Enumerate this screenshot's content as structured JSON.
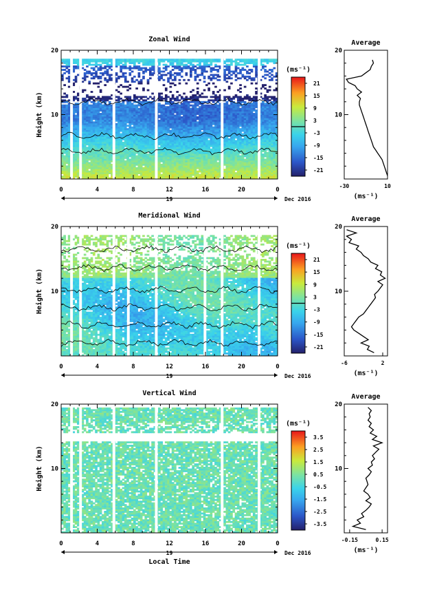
{
  "chart_data": [
    {
      "type": "heatmap",
      "title": "Zonal Wind",
      "ylabel": "Height (km)",
      "ylim": [
        0,
        20
      ],
      "yticks": [
        {
          "value": 10,
          "label": "10"
        },
        {
          "value": 20,
          "label": "20"
        }
      ],
      "xlim": [
        0,
        24
      ],
      "xticks": [
        "0",
        "4",
        "8",
        "12",
        "16",
        "20",
        "0"
      ],
      "day_label": "19",
      "date_label": "Dec 2016",
      "colorbar": {
        "unit": "(ms⁻¹)",
        "range": [
          -24,
          24
        ],
        "tick_values": [
          21,
          15,
          9,
          3,
          -3,
          -9,
          -15,
          -21
        ],
        "tick_labels": [
          "21",
          "15",
          "9",
          "3",
          "-3",
          "-9",
          "-15",
          "-21"
        ],
        "marker": 0
      },
      "data_gaps_local_time": [
        1.0,
        2.0,
        5.7,
        10.4,
        17.7,
        21.8
      ],
      "contour_levels": [
        0
      ],
      "profile": {
        "title": "Average",
        "xlabel": "(ms⁻¹)",
        "xlim": [
          -30,
          10
        ],
        "xticks": [
          {
            "value": -30,
            "label": "-30"
          },
          {
            "value": 10,
            "label": "10"
          }
        ],
        "heights": [
          0.5,
          1,
          1.5,
          2,
          2.5,
          3,
          3.5,
          4,
          4.5,
          5,
          5.5,
          6,
          6.5,
          7,
          7.5,
          8,
          8.5,
          9,
          9.5,
          10,
          10.5,
          11,
          11.5,
          12,
          12.5,
          13,
          13.5,
          14,
          14.5,
          15,
          15.5,
          16,
          16.5,
          17,
          17.5,
          18,
          18.5
        ],
        "values": [
          10,
          9,
          8,
          7,
          6,
          5,
          3,
          1,
          -1,
          -3,
          -4,
          -5,
          -6,
          -7,
          -8,
          -9,
          -10,
          -11,
          -12,
          -13,
          -14,
          -15,
          -16,
          -16,
          -15,
          -18,
          -14,
          -18,
          -20,
          -26,
          -28,
          -14,
          -10,
          -6,
          -5,
          -3,
          -4
        ]
      }
    },
    {
      "type": "heatmap",
      "title": "Meridional Wind",
      "ylabel": "Height (km)",
      "ylim": [
        0,
        20
      ],
      "yticks": [
        {
          "value": 10,
          "label": "10"
        },
        {
          "value": 20,
          "label": "20"
        }
      ],
      "xlim": [
        0,
        24
      ],
      "xticks": [
        "0",
        "4",
        "8",
        "12",
        "16",
        "20",
        "0"
      ],
      "day_label": "19",
      "date_label": "Dec 2016",
      "colorbar": {
        "unit": "(ms⁻¹)",
        "range": [
          -24,
          24
        ],
        "tick_values": [
          21,
          15,
          9,
          3,
          -3,
          -9,
          -15,
          -21
        ],
        "tick_labels": [
          "21",
          "15",
          "9",
          "3",
          "-3",
          "-9",
          "-15",
          "-21"
        ],
        "marker": 0
      },
      "data_gaps_local_time": [
        1.0,
        2.0,
        5.7,
        7.3,
        10.4,
        15.8,
        17.7,
        21.8
      ],
      "contour_levels": [
        0
      ],
      "profile": {
        "title": "Average",
        "xlabel": "(ms⁻¹)",
        "xlim": [
          -6,
          3
        ],
        "xticks": [
          {
            "value": -6,
            "label": "-6"
          },
          {
            "value": 2,
            "label": "2"
          }
        ],
        "heights": [
          0.5,
          1,
          1.5,
          2,
          2.5,
          3,
          3.5,
          4,
          4.5,
          5,
          5.5,
          6,
          6.5,
          7,
          7.5,
          8,
          8.5,
          9,
          9.5,
          10,
          10.5,
          11,
          11.5,
          12,
          12.5,
          13,
          13.5,
          14,
          14.5,
          15,
          15.5,
          16,
          16.5,
          17,
          17.5,
          18,
          18.5,
          19,
          19.5
        ],
        "values": [
          0.2,
          -1.2,
          -0.8,
          -2.5,
          -1.0,
          -2.0,
          -3.0,
          -4.0,
          -4.5,
          -4.0,
          -3.5,
          -3.0,
          -2.0,
          -1.5,
          -1.0,
          -0.5,
          0.0,
          0.5,
          0.3,
          1.0,
          1.5,
          2.0,
          1.0,
          2.5,
          1.5,
          1.8,
          0.5,
          1.0,
          -0.5,
          -1.0,
          -2.0,
          -2.5,
          -3.5,
          -3.0,
          -5.0,
          -4.5,
          -5.5,
          -3.5,
          -5.5
        ]
      }
    },
    {
      "type": "heatmap",
      "title": "Vertical Wind",
      "ylabel": "Height (km)",
      "xlabel": "Local Time",
      "ylim": [
        0,
        20
      ],
      "yticks": [
        {
          "value": 10,
          "label": "10"
        },
        {
          "value": 20,
          "label": "20"
        }
      ],
      "xlim": [
        0,
        24
      ],
      "xticks": [
        "0",
        "4",
        "8",
        "12",
        "16",
        "20",
        "0"
      ],
      "day_label": "19",
      "date_label": "Dec 2016",
      "colorbar": {
        "unit": "(ms⁻¹)",
        "range": [
          -4,
          4
        ],
        "tick_values": [
          3.5,
          2.5,
          1.5,
          0.5,
          -0.5,
          -1.5,
          -2.5,
          -3.5
        ],
        "tick_labels": [
          "3.5",
          "2.5",
          "1.5",
          "0.5",
          "-0.5",
          "-1.5",
          "-2.5",
          "-3.5"
        ]
      },
      "data_gaps_local_time": [
        1.0,
        2.0,
        5.7,
        10.4,
        17.7,
        21.8
      ],
      "profile": {
        "title": "Average",
        "xlabel": "(ms⁻¹)",
        "xlim": [
          -0.2,
          0.2
        ],
        "xticks": [
          {
            "value": -0.15,
            "label": "-0.15"
          },
          {
            "value": 0.15,
            "label": "0.15"
          }
        ],
        "heights": [
          0.5,
          1,
          1.5,
          2,
          2.5,
          3,
          3.5,
          4,
          4.5,
          5,
          5.5,
          6,
          6.5,
          7,
          7.5,
          8,
          8.5,
          9,
          9.5,
          10,
          10.5,
          11,
          11.5,
          12,
          12.5,
          13,
          13.5,
          14,
          14.5,
          15,
          15.5,
          16,
          16.5,
          17,
          17.5,
          18,
          18.5,
          19,
          19.5
        ],
        "values": [
          0.0,
          -0.12,
          -0.05,
          -0.08,
          -0.02,
          -0.04,
          0.0,
          0.03,
          0.05,
          0.0,
          0.04,
          0.02,
          -0.02,
          0.0,
          0.02,
          0.01,
          0.0,
          0.03,
          0.05,
          0.02,
          0.06,
          0.05,
          0.08,
          0.06,
          0.09,
          0.12,
          0.07,
          0.15,
          0.06,
          0.1,
          0.04,
          0.07,
          0.03,
          0.05,
          0.02,
          0.04,
          0.03,
          0.05,
          0.02
        ]
      }
    }
  ]
}
